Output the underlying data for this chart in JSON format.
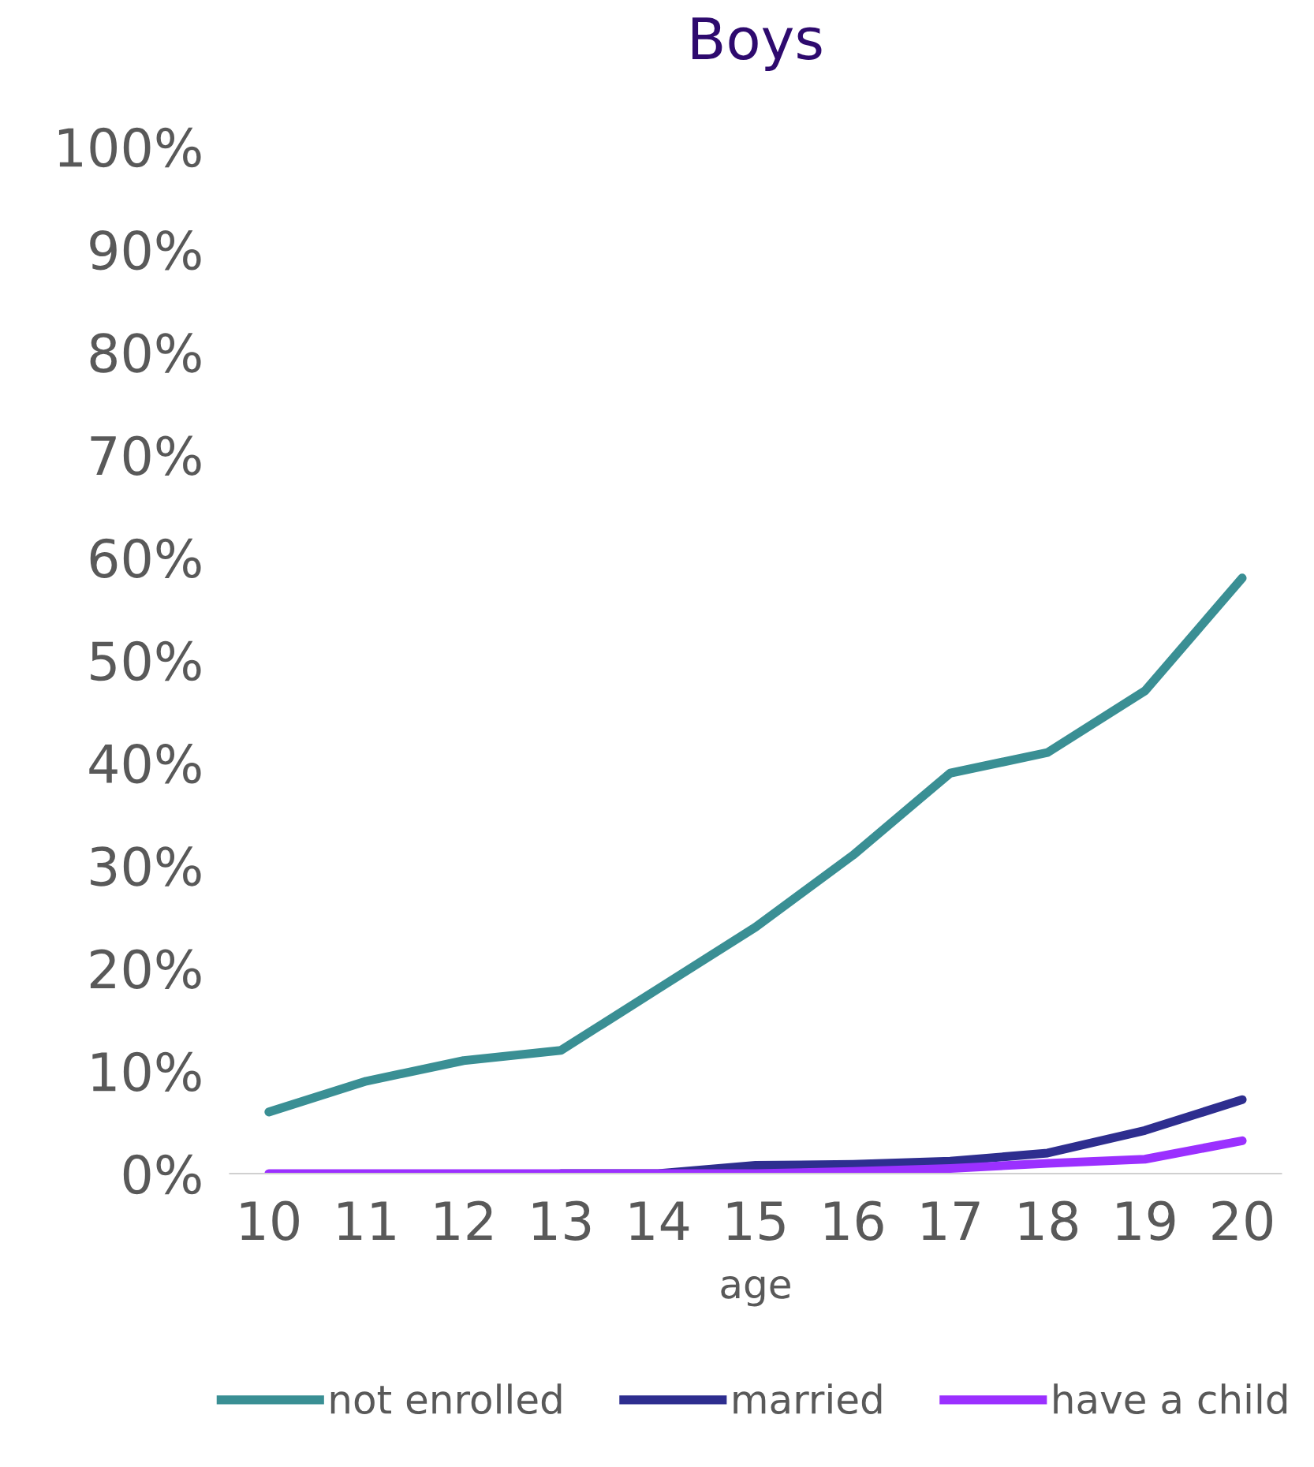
{
  "chart_data": {
    "type": "line",
    "title": "Boys",
    "xlabel": "age",
    "categories": [
      "10",
      "11",
      "12",
      "13",
      "14",
      "15",
      "16",
      "17",
      "18",
      "19",
      "20"
    ],
    "series": [
      {
        "name": "not enrolled",
        "color": "#3a8f94",
        "values": [
          6,
          9,
          11,
          12,
          18,
          24,
          31,
          39,
          41,
          47,
          58
        ]
      },
      {
        "name": "married",
        "color": "#2e2e8f",
        "values": [
          null,
          null,
          null,
          0,
          0,
          0.8,
          0.9,
          1.2,
          2,
          4.2,
          7.2
        ]
      },
      {
        "name": "have a child",
        "color": "#9b30ff",
        "values": [
          0,
          0,
          0,
          0,
          0,
          0,
          0.2,
          0.5,
          1,
          1.4,
          3.2
        ]
      }
    ],
    "ylim": [
      0,
      100
    ],
    "yticks": [
      {
        "value": 0,
        "label": "0%"
      },
      {
        "value": 10,
        "label": "10%"
      },
      {
        "value": 20,
        "label": "20%"
      },
      {
        "value": 30,
        "label": "30%"
      },
      {
        "value": 40,
        "label": "40%"
      },
      {
        "value": 50,
        "label": "50%"
      },
      {
        "value": 60,
        "label": "60%"
      },
      {
        "value": 70,
        "label": "70%"
      },
      {
        "value": 80,
        "label": "80%"
      },
      {
        "value": 90,
        "label": "90%"
      },
      {
        "value": 100,
        "label": "100%"
      }
    ],
    "grid": false,
    "legend": "bottom",
    "marker": "none",
    "line_style": "solid"
  }
}
